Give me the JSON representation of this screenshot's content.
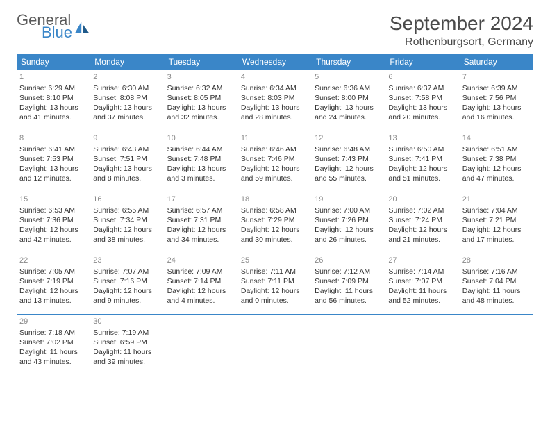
{
  "brand": {
    "line1": "General",
    "line2": "Blue",
    "color1": "#5a5a5a",
    "color2": "#3a86c8"
  },
  "title": "September 2024",
  "location": "Rothenburgsort, Germany",
  "header_bg": "#3a86c8",
  "header_fg": "#ffffff",
  "border_color": "#3a86c8",
  "daynum_color": "#888888",
  "text_color": "#333333",
  "font_family": "Arial, Helvetica, sans-serif",
  "title_fontsize": 28,
  "location_fontsize": 16,
  "header_fontsize": 12,
  "cell_fontsize": 10.5,
  "columns": [
    "Sunday",
    "Monday",
    "Tuesday",
    "Wednesday",
    "Thursday",
    "Friday",
    "Saturday"
  ],
  "weeks": [
    [
      {
        "n": "1",
        "sr": "6:29 AM",
        "ss": "8:10 PM",
        "dh": 13,
        "dm": 41
      },
      {
        "n": "2",
        "sr": "6:30 AM",
        "ss": "8:08 PM",
        "dh": 13,
        "dm": 37
      },
      {
        "n": "3",
        "sr": "6:32 AM",
        "ss": "8:05 PM",
        "dh": 13,
        "dm": 32
      },
      {
        "n": "4",
        "sr": "6:34 AM",
        "ss": "8:03 PM",
        "dh": 13,
        "dm": 28
      },
      {
        "n": "5",
        "sr": "6:36 AM",
        "ss": "8:00 PM",
        "dh": 13,
        "dm": 24
      },
      {
        "n": "6",
        "sr": "6:37 AM",
        "ss": "7:58 PM",
        "dh": 13,
        "dm": 20
      },
      {
        "n": "7",
        "sr": "6:39 AM",
        "ss": "7:56 PM",
        "dh": 13,
        "dm": 16
      }
    ],
    [
      {
        "n": "8",
        "sr": "6:41 AM",
        "ss": "7:53 PM",
        "dh": 13,
        "dm": 12
      },
      {
        "n": "9",
        "sr": "6:43 AM",
        "ss": "7:51 PM",
        "dh": 13,
        "dm": 8
      },
      {
        "n": "10",
        "sr": "6:44 AM",
        "ss": "7:48 PM",
        "dh": 13,
        "dm": 3
      },
      {
        "n": "11",
        "sr": "6:46 AM",
        "ss": "7:46 PM",
        "dh": 12,
        "dm": 59
      },
      {
        "n": "12",
        "sr": "6:48 AM",
        "ss": "7:43 PM",
        "dh": 12,
        "dm": 55
      },
      {
        "n": "13",
        "sr": "6:50 AM",
        "ss": "7:41 PM",
        "dh": 12,
        "dm": 51
      },
      {
        "n": "14",
        "sr": "6:51 AM",
        "ss": "7:38 PM",
        "dh": 12,
        "dm": 47
      }
    ],
    [
      {
        "n": "15",
        "sr": "6:53 AM",
        "ss": "7:36 PM",
        "dh": 12,
        "dm": 42
      },
      {
        "n": "16",
        "sr": "6:55 AM",
        "ss": "7:34 PM",
        "dh": 12,
        "dm": 38
      },
      {
        "n": "17",
        "sr": "6:57 AM",
        "ss": "7:31 PM",
        "dh": 12,
        "dm": 34
      },
      {
        "n": "18",
        "sr": "6:58 AM",
        "ss": "7:29 PM",
        "dh": 12,
        "dm": 30
      },
      {
        "n": "19",
        "sr": "7:00 AM",
        "ss": "7:26 PM",
        "dh": 12,
        "dm": 26
      },
      {
        "n": "20",
        "sr": "7:02 AM",
        "ss": "7:24 PM",
        "dh": 12,
        "dm": 21
      },
      {
        "n": "21",
        "sr": "7:04 AM",
        "ss": "7:21 PM",
        "dh": 12,
        "dm": 17
      }
    ],
    [
      {
        "n": "22",
        "sr": "7:05 AM",
        "ss": "7:19 PM",
        "dh": 12,
        "dm": 13
      },
      {
        "n": "23",
        "sr": "7:07 AM",
        "ss": "7:16 PM",
        "dh": 12,
        "dm": 9
      },
      {
        "n": "24",
        "sr": "7:09 AM",
        "ss": "7:14 PM",
        "dh": 12,
        "dm": 4
      },
      {
        "n": "25",
        "sr": "7:11 AM",
        "ss": "7:11 PM",
        "dh": 12,
        "dm": 0
      },
      {
        "n": "26",
        "sr": "7:12 AM",
        "ss": "7:09 PM",
        "dh": 11,
        "dm": 56
      },
      {
        "n": "27",
        "sr": "7:14 AM",
        "ss": "7:07 PM",
        "dh": 11,
        "dm": 52
      },
      {
        "n": "28",
        "sr": "7:16 AM",
        "ss": "7:04 PM",
        "dh": 11,
        "dm": 48
      }
    ],
    [
      {
        "n": "29",
        "sr": "7:18 AM",
        "ss": "7:02 PM",
        "dh": 11,
        "dm": 43
      },
      {
        "n": "30",
        "sr": "7:19 AM",
        "ss": "6:59 PM",
        "dh": 11,
        "dm": 39
      },
      null,
      null,
      null,
      null,
      null
    ]
  ],
  "labels": {
    "sunrise": "Sunrise:",
    "sunset": "Sunset:",
    "daylight_prefix": "Daylight:",
    "hours_word": "hours",
    "minutes_word": "minutes.",
    "and_word": "and"
  }
}
